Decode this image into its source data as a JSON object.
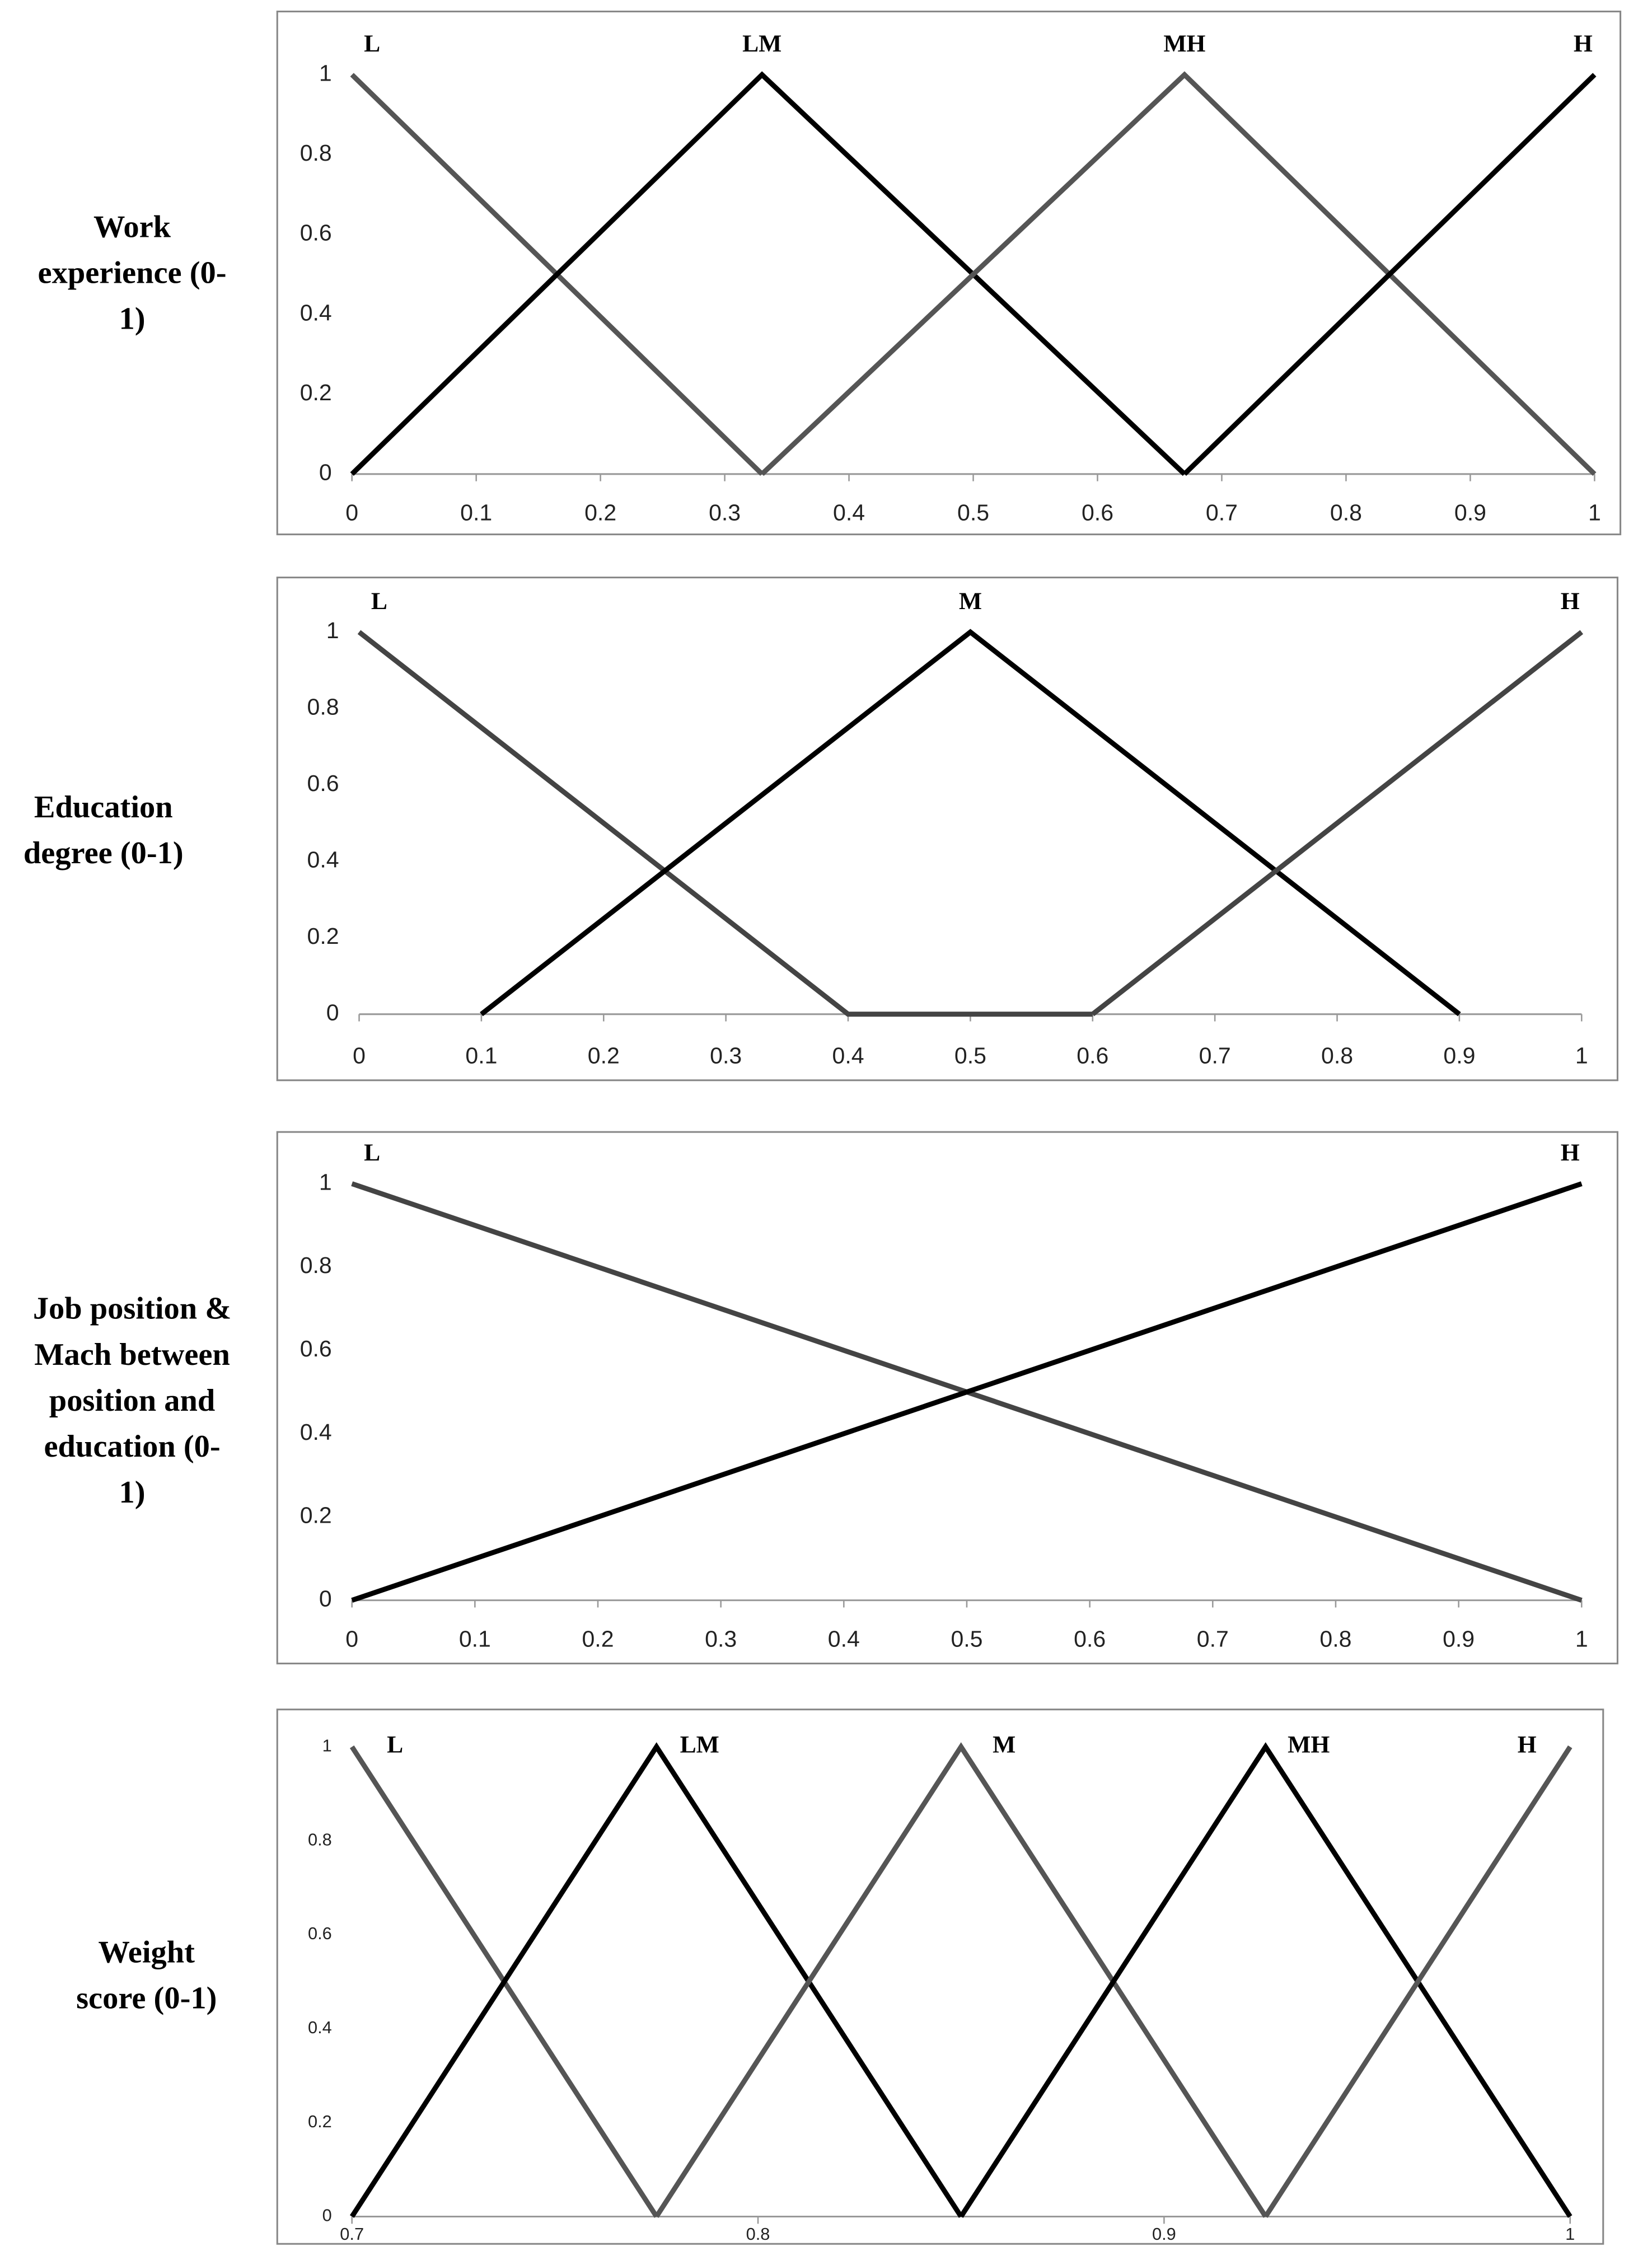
{
  "chart_data": [
    {
      "type": "line",
      "ylabel": "Work experience (0-1)",
      "xlim": [
        0,
        1
      ],
      "xticks": [
        0,
        0.1,
        0.2,
        0.3,
        0.4,
        0.5,
        0.6,
        0.7,
        0.8,
        0.9,
        1
      ],
      "ylim": [
        0,
        1
      ],
      "yticks": [
        0,
        0.2,
        0.4,
        0.6,
        0.8,
        1
      ],
      "grid": false,
      "series": [
        {
          "name": "L",
          "color": "#555555",
          "x": [
            0,
            0.33
          ],
          "values": [
            1,
            0
          ]
        },
        {
          "name": "LM",
          "color": "#000000",
          "x": [
            0,
            0.33,
            0.67
          ],
          "values": [
            0,
            1,
            0
          ]
        },
        {
          "name": "MH",
          "color": "#555555",
          "x": [
            0.33,
            0.67,
            1
          ],
          "values": [
            0,
            1,
            0
          ]
        },
        {
          "name": "H",
          "color": "#000000",
          "x": [
            0.67,
            1
          ],
          "values": [
            0,
            1
          ]
        }
      ]
    },
    {
      "type": "line",
      "ylabel": "Education degree (0-1)",
      "xlim": [
        0,
        1
      ],
      "xticks": [
        0,
        0.1,
        0.2,
        0.3,
        0.4,
        0.5,
        0.6,
        0.7,
        0.8,
        0.9,
        1
      ],
      "ylim": [
        0,
        1
      ],
      "yticks": [
        0,
        0.2,
        0.4,
        0.6,
        0.8,
        1
      ],
      "grid": false,
      "series": [
        {
          "name": "L",
          "color": "#444444",
          "x": [
            0,
            0.4,
            0.6
          ],
          "values": [
            1,
            0,
            0
          ]
        },
        {
          "name": "M",
          "color": "#000000",
          "x": [
            0.1,
            0.5,
            0.9
          ],
          "values": [
            0,
            1,
            0
          ]
        },
        {
          "name": "H",
          "color": "#444444",
          "x": [
            0.6,
            1
          ],
          "values": [
            0,
            1
          ]
        }
      ]
    },
    {
      "type": "line",
      "ylabel": "Job position & Mach between position and education (0-1)",
      "xlim": [
        0,
        1
      ],
      "xticks": [
        0,
        0.1,
        0.2,
        0.3,
        0.4,
        0.5,
        0.6,
        0.7,
        0.8,
        0.9,
        1
      ],
      "ylim": [
        0,
        1
      ],
      "yticks": [
        0,
        0.2,
        0.4,
        0.6,
        0.8,
        1
      ],
      "grid": false,
      "series": [
        {
          "name": "L",
          "color": "#444444",
          "x": [
            0,
            1
          ],
          "values": [
            1,
            0
          ]
        },
        {
          "name": "H",
          "color": "#000000",
          "x": [
            0,
            1
          ],
          "values": [
            0,
            1
          ]
        }
      ]
    },
    {
      "type": "line",
      "ylabel": "Weight score (0-1)",
      "xlim": [
        0.7,
        1
      ],
      "xticks": [
        0.7,
        0.8,
        0.9,
        1
      ],
      "ylim": [
        0,
        1
      ],
      "yticks": [
        0,
        0.2,
        0.4,
        0.6,
        0.8,
        1
      ],
      "grid": false,
      "series": [
        {
          "name": "L",
          "color": "#555555",
          "x": [
            0.7,
            0.775
          ],
          "values": [
            1,
            0
          ]
        },
        {
          "name": "LM",
          "color": "#000000",
          "x": [
            0.7,
            0.775,
            0.85
          ],
          "values": [
            0,
            1,
            0
          ]
        },
        {
          "name": "M",
          "color": "#555555",
          "x": [
            0.775,
            0.85,
            0.925
          ],
          "values": [
            0,
            1,
            0
          ]
        },
        {
          "name": "MH",
          "color": "#000000",
          "x": [
            0.85,
            0.925,
            1
          ],
          "values": [
            0,
            1,
            0
          ]
        },
        {
          "name": "H",
          "color": "#555555",
          "x": [
            0.925,
            1
          ],
          "values": [
            0,
            1
          ]
        }
      ]
    }
  ]
}
